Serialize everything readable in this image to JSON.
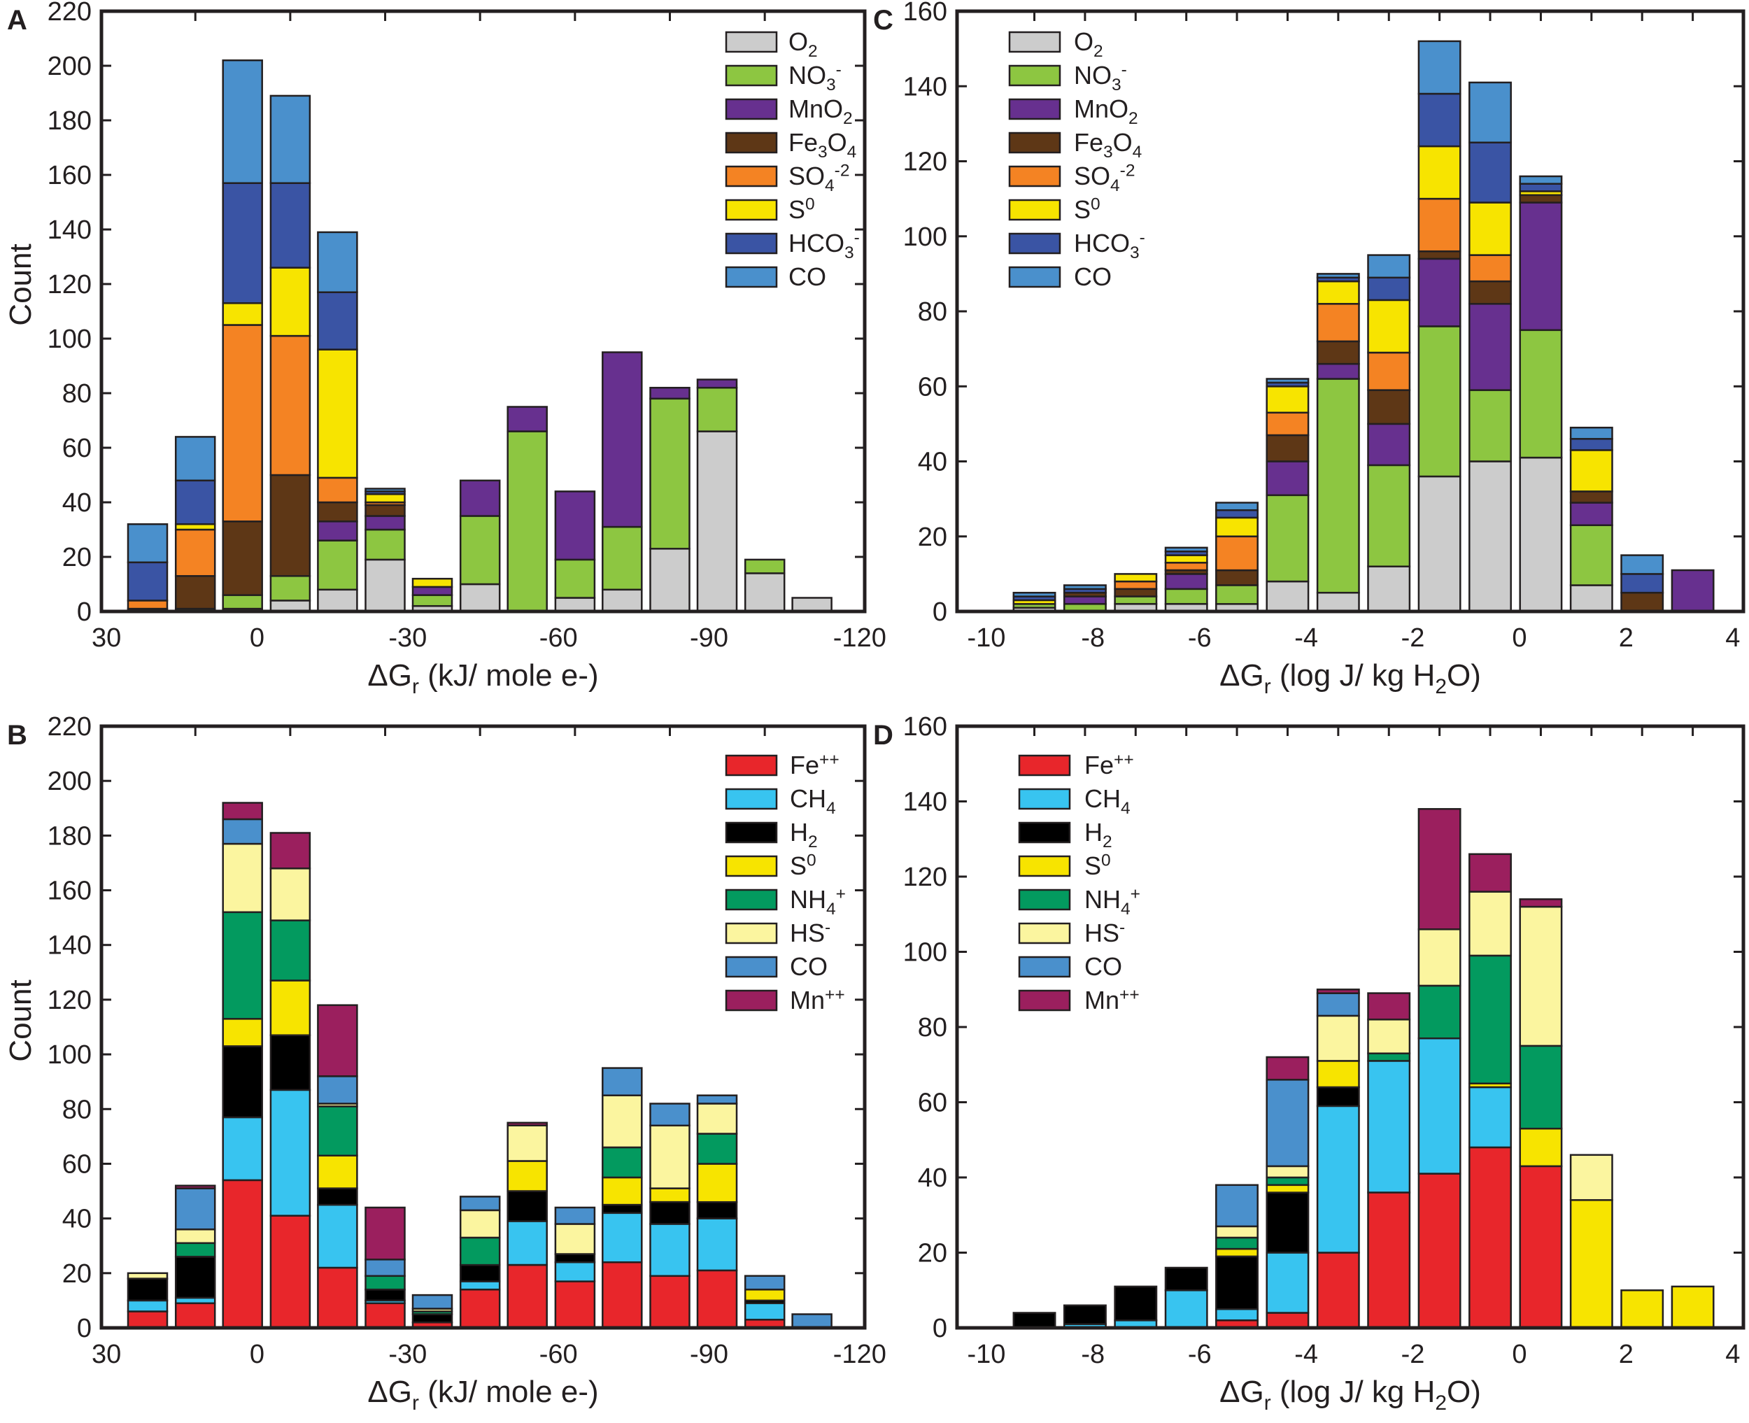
{
  "chart_data": [
    {
      "panel": "A",
      "type": "bar",
      "stacked": true,
      "ylabel": "Count",
      "xlabel": [
        {
          "t": "ΔG"
        },
        {
          "t": "r",
          "s": "sub"
        },
        {
          "t": " (kJ/ mole e-)"
        }
      ],
      "xlim": [
        31,
        -121
      ],
      "ylim": [
        0,
        220
      ],
      "xticks": [
        30,
        0,
        -30,
        -60,
        -90,
        -120
      ],
      "yticks": [
        0,
        20,
        40,
        60,
        80,
        100,
        120,
        140,
        160,
        180,
        200,
        220
      ],
      "bar_width": 7.8,
      "x": [
        21.8,
        12.3,
        2.9,
        -6.6,
        -16.0,
        -25.5,
        -34.9,
        -44.4,
        -53.8,
        -63.3,
        -72.7,
        -82.2,
        -91.6,
        -101.1,
        -110.5
      ],
      "legend_position": "top-right",
      "series": [
        {
          "label": [
            {
              "t": "O"
            },
            {
              "t": "2",
              "s": "sub"
            }
          ],
          "color": "#cccccc",
          "values": [
            0,
            0,
            1,
            4,
            8,
            19,
            2,
            10,
            0,
            5,
            8,
            23,
            66,
            14,
            5
          ]
        },
        {
          "label": [
            {
              "t": "NO"
            },
            {
              "t": "3",
              "s": "sub"
            },
            {
              "t": "-",
              "s": "sup"
            }
          ],
          "color": "#8dc641",
          "values": [
            0,
            1,
            5,
            9,
            18,
            11,
            4,
            25,
            66,
            14,
            23,
            55,
            16,
            5,
            0
          ]
        },
        {
          "label": [
            {
              "t": "MnO"
            },
            {
              "t": "2",
              "s": "sub"
            }
          ],
          "color": "#67308f",
          "values": [
            0,
            0,
            0,
            0,
            7,
            5,
            3,
            13,
            9,
            25,
            64,
            4,
            3,
            0,
            0
          ]
        },
        {
          "label": [
            {
              "t": "Fe"
            },
            {
              "t": "3",
              "s": "sub"
            },
            {
              "t": "O"
            },
            {
              "t": "4",
              "s": "sub"
            }
          ],
          "color": "#5e3716",
          "values": [
            1,
            12,
            27,
            37,
            7,
            4,
            0,
            0,
            0,
            0,
            0,
            0,
            0,
            0,
            0
          ]
        },
        {
          "label": [
            {
              "t": "SO"
            },
            {
              "t": "4",
              "s": "sub"
            },
            {
              "t": "-2",
              "s": "sup"
            }
          ],
          "color": "#f48323",
          "values": [
            3,
            17,
            72,
            51,
            9,
            1,
            0,
            0,
            0,
            0,
            0,
            0,
            0,
            0,
            0
          ]
        },
        {
          "label": [
            {
              "t": "S"
            },
            {
              "t": "0",
              "s": "sup"
            }
          ],
          "color": "#f7e400",
          "values": [
            0,
            2,
            8,
            25,
            47,
            3,
            3,
            0,
            0,
            0,
            0,
            0,
            0,
            0,
            0
          ]
        },
        {
          "label": [
            {
              "t": "HCO"
            },
            {
              "t": "3",
              "s": "sub"
            },
            {
              "t": "-",
              "s": "sup"
            }
          ],
          "color": "#3a54a4",
          "values": [
            14,
            16,
            44,
            31,
            21,
            1,
            0,
            0,
            0,
            0,
            0,
            0,
            0,
            0,
            0
          ]
        },
        {
          "label": [
            {
              "t": "CO"
            }
          ],
          "color": "#4a90cc",
          "values": [
            14,
            16,
            45,
            32,
            22,
            1,
            0,
            0,
            0,
            0,
            0,
            0,
            0,
            0,
            0
          ]
        }
      ]
    },
    {
      "panel": "B",
      "type": "bar",
      "stacked": true,
      "ylabel": "Count",
      "xlabel": [
        {
          "t": "ΔG"
        },
        {
          "t": "r",
          "s": "sub"
        },
        {
          "t": " (kJ/ mole e-)"
        }
      ],
      "xlim": [
        31,
        -121
      ],
      "ylim": [
        0,
        220
      ],
      "xticks": [
        30,
        0,
        -30,
        -60,
        -90,
        -120
      ],
      "yticks": [
        0,
        20,
        40,
        60,
        80,
        100,
        120,
        140,
        160,
        180,
        200,
        220
      ],
      "bar_width": 7.8,
      "x": [
        21.8,
        12.3,
        2.9,
        -6.6,
        -16.0,
        -25.5,
        -34.9,
        -44.4,
        -53.8,
        -63.3,
        -72.7,
        -82.2,
        -91.6,
        -101.1,
        -110.5
      ],
      "legend_position": "top-right",
      "series": [
        {
          "label": [
            {
              "t": "Fe"
            },
            {
              "t": "++",
              "s": "sup"
            }
          ],
          "color": "#e8262b",
          "values": [
            6,
            9,
            54,
            41,
            22,
            9,
            2,
            14,
            23,
            17,
            24,
            19,
            21,
            3,
            0
          ]
        },
        {
          "label": [
            {
              "t": "CH"
            },
            {
              "t": "4",
              "s": "sub"
            }
          ],
          "color": "#38c4f0",
          "values": [
            4,
            2,
            23,
            46,
            23,
            1,
            0,
            3,
            16,
            7,
            18,
            19,
            19,
            6,
            0
          ]
        },
        {
          "label": [
            {
              "t": "H"
            },
            {
              "t": "2",
              "s": "sub"
            }
          ],
          "color": "#000000",
          "values": [
            8,
            15,
            26,
            20,
            6,
            4,
            3,
            6,
            11,
            3,
            3,
            8,
            6,
            1,
            0
          ]
        },
        {
          "label": [
            {
              "t": "S"
            },
            {
              "t": "0",
              "s": "sup"
            }
          ],
          "color": "#f7e400",
          "values": [
            0,
            0,
            10,
            20,
            12,
            0,
            0,
            0,
            11,
            0,
            10,
            5,
            14,
            4,
            0
          ]
        },
        {
          "label": [
            {
              "t": "NH"
            },
            {
              "t": "4",
              "s": "sub"
            },
            {
              "t": "+",
              "s": "sup"
            }
          ],
          "color": "#039a5f",
          "values": [
            0,
            5,
            39,
            22,
            18,
            5,
            1,
            10,
            0,
            0,
            11,
            0,
            11,
            0,
            0
          ]
        },
        {
          "label": [
            {
              "t": "HS"
            },
            {
              "t": "-",
              "s": "sup"
            }
          ],
          "color": "#fbf59f",
          "values": [
            2,
            5,
            25,
            19,
            1,
            0,
            1,
            10,
            13,
            11,
            19,
            23,
            11,
            0,
            0
          ]
        },
        {
          "label": [
            {
              "t": "CO"
            }
          ],
          "color": "#4a90cc",
          "values": [
            0,
            15,
            9,
            0,
            10,
            6,
            5,
            5,
            0,
            6,
            10,
            8,
            3,
            5,
            5
          ]
        },
        {
          "label": [
            {
              "t": "Mn"
            },
            {
              "t": "++",
              "s": "sup"
            }
          ],
          "color": "#9b1f5e",
          "values": [
            0,
            1,
            6,
            13,
            26,
            19,
            0,
            0,
            1,
            0,
            0,
            0,
            0,
            0,
            0
          ]
        }
      ]
    },
    {
      "panel": "C",
      "type": "bar",
      "stacked": true,
      "ylabel": "",
      "xlabel": [
        {
          "t": "ΔG"
        },
        {
          "t": "r",
          "s": "sub"
        },
        {
          "t": "  (log J/ kg H"
        },
        {
          "t": "2",
          "s": "sub"
        },
        {
          "t": "O)"
        }
      ],
      "xlim": [
        -10.55,
        4.2
      ],
      "ylim": [
        0,
        160
      ],
      "xticks": [
        -10,
        -8,
        -6,
        -4,
        -2,
        0,
        2,
        4
      ],
      "yticks": [
        0,
        20,
        40,
        60,
        80,
        100,
        120,
        140,
        160
      ],
      "bar_width": 0.78,
      "x": [
        -9.1,
        -8.15,
        -7.2,
        -6.25,
        -5.3,
        -4.35,
        -3.4,
        -2.45,
        -1.5,
        -0.55,
        0.4,
        1.35,
        2.3,
        3.25
      ],
      "legend_position": "top-left",
      "series": [
        {
          "label": [
            {
              "t": "O"
            },
            {
              "t": "2",
              "s": "sub"
            }
          ],
          "color": "#cccccc",
          "values": [
            1,
            0,
            2,
            2,
            2,
            8,
            5,
            12,
            36,
            40,
            41,
            7,
            0,
            0
          ]
        },
        {
          "label": [
            {
              "t": "NO"
            },
            {
              "t": "3",
              "s": "sub"
            },
            {
              "t": "-",
              "s": "sup"
            }
          ],
          "color": "#8dc641",
          "values": [
            1,
            2,
            2,
            4,
            5,
            23,
            57,
            27,
            40,
            19,
            34,
            16,
            0,
            0
          ]
        },
        {
          "label": [
            {
              "t": "MnO"
            },
            {
              "t": "2",
              "s": "sub"
            }
          ],
          "color": "#67308f",
          "values": [
            0,
            2,
            0,
            4,
            0,
            9,
            4,
            11,
            18,
            23,
            34,
            6,
            0,
            11
          ]
        },
        {
          "label": [
            {
              "t": "Fe"
            },
            {
              "t": "3",
              "s": "sub"
            },
            {
              "t": "O"
            },
            {
              "t": "4",
              "s": "sub"
            }
          ],
          "color": "#5e3716",
          "values": [
            0,
            1,
            2,
            1,
            4,
            7,
            6,
            9,
            2,
            6,
            2,
            3,
            5,
            0
          ]
        },
        {
          "label": [
            {
              "t": "SO"
            },
            {
              "t": "4",
              "s": "sub"
            },
            {
              "t": "-2",
              "s": "sup"
            }
          ],
          "color": "#f48323",
          "values": [
            0,
            0,
            2,
            2,
            9,
            6,
            10,
            10,
            14,
            7,
            0,
            0,
            0,
            0
          ]
        },
        {
          "label": [
            {
              "t": "S"
            },
            {
              "t": "0",
              "s": "sup"
            }
          ],
          "color": "#f7e400",
          "values": [
            1,
            0,
            2,
            2,
            5,
            7,
            6,
            14,
            14,
            14,
            1,
            11,
            0,
            0
          ]
        },
        {
          "label": [
            {
              "t": "HCO"
            },
            {
              "t": "3",
              "s": "sub"
            },
            {
              "t": "-",
              "s": "sup"
            }
          ],
          "color": "#3a54a4",
          "values": [
            1,
            1,
            0,
            1,
            2,
            1,
            1,
            6,
            14,
            16,
            2,
            3,
            5,
            0
          ]
        },
        {
          "label": [
            {
              "t": "CO"
            }
          ],
          "color": "#4a90cc",
          "values": [
            1,
            1,
            0,
            1,
            2,
            1,
            1,
            6,
            14,
            16,
            2,
            3,
            5,
            0
          ]
        }
      ]
    },
    {
      "panel": "D",
      "type": "bar",
      "stacked": true,
      "ylabel": "",
      "xlabel": [
        {
          "t": "ΔG"
        },
        {
          "t": "r",
          "s": "sub"
        },
        {
          "t": "  (log J/ kg H"
        },
        {
          "t": "2",
          "s": "sub"
        },
        {
          "t": "O)"
        }
      ],
      "xlim": [
        -10.55,
        4.2
      ],
      "ylim": [
        0,
        160
      ],
      "xticks": [
        -10,
        -8,
        -6,
        -4,
        -2,
        0,
        2,
        4
      ],
      "yticks": [
        0,
        20,
        40,
        60,
        80,
        100,
        120,
        140,
        160
      ],
      "bar_width": 0.78,
      "x": [
        -9.1,
        -8.15,
        -7.2,
        -6.25,
        -5.3,
        -4.35,
        -3.4,
        -2.45,
        -1.5,
        -0.55,
        0.4,
        1.35,
        2.3,
        3.25
      ],
      "legend_position": "top-left",
      "series": [
        {
          "label": [
            {
              "t": "Fe"
            },
            {
              "t": "++",
              "s": "sup"
            }
          ],
          "color": "#e8262b",
          "values": [
            0,
            0,
            0,
            0,
            2,
            4,
            20,
            36,
            41,
            48,
            43,
            0,
            0,
            0
          ]
        },
        {
          "label": [
            {
              "t": "CH"
            },
            {
              "t": "4",
              "s": "sub"
            }
          ],
          "color": "#38c4f0",
          "values": [
            0,
            1,
            2,
            10,
            3,
            16,
            39,
            35,
            36,
            16,
            0,
            0,
            0,
            0
          ]
        },
        {
          "label": [
            {
              "t": "H"
            },
            {
              "t": "2",
              "s": "sub"
            }
          ],
          "color": "#000000",
          "values": [
            4,
            5,
            9,
            6,
            14,
            16,
            5,
            0,
            0,
            0,
            0,
            0,
            0,
            0
          ]
        },
        {
          "label": [
            {
              "t": "S"
            },
            {
              "t": "0",
              "s": "sup"
            }
          ],
          "color": "#f7e400",
          "values": [
            0,
            0,
            0,
            0,
            2,
            2,
            7,
            0,
            0,
            1,
            10,
            34,
            10,
            11
          ]
        },
        {
          "label": [
            {
              "t": "NH"
            },
            {
              "t": "4",
              "s": "sub"
            },
            {
              "t": "+",
              "s": "sup"
            }
          ],
          "color": "#039a5f",
          "values": [
            0,
            0,
            0,
            0,
            3,
            2,
            0,
            2,
            14,
            34,
            22,
            0,
            0,
            0
          ]
        },
        {
          "label": [
            {
              "t": "HS"
            },
            {
              "t": "-",
              "s": "sup"
            }
          ],
          "color": "#fbf59f",
          "values": [
            0,
            0,
            0,
            0,
            3,
            3,
            12,
            9,
            15,
            17,
            37,
            12,
            0,
            0
          ]
        },
        {
          "label": [
            {
              "t": "CO"
            }
          ],
          "color": "#4a90cc",
          "values": [
            0,
            0,
            0,
            0,
            11,
            23,
            6,
            0,
            0,
            0,
            0,
            0,
            0,
            0
          ]
        },
        {
          "label": [
            {
              "t": "Mn"
            },
            {
              "t": "++",
              "s": "sup"
            }
          ],
          "color": "#9b1f5e",
          "values": [
            0,
            0,
            0,
            0,
            0,
            6,
            1,
            7,
            32,
            10,
            2,
            0,
            0,
            0
          ]
        }
      ]
    }
  ]
}
